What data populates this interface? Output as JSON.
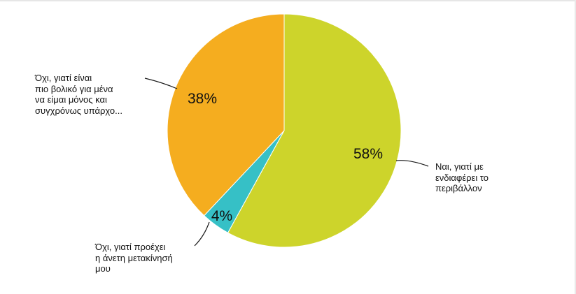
{
  "chart_data": {
    "type": "pie",
    "categories": [
      "Ναι, γιατί με ενδιαφέρει το περιβάλλον",
      "Όχι, γιατί προέχει η άνετη μετακίνησή μου",
      "Όχι, γιατί είναι πιο βολικό για μένα να είμαι μόνος και συγχρόνως υπάρχο..."
    ],
    "values": [
      58,
      4,
      38
    ],
    "value_labels": [
      "58%",
      "4%",
      "38%"
    ],
    "colors": [
      "#cdd42b",
      "#36c0c6",
      "#f5ad1f"
    ],
    "start_angle_deg": 0,
    "direction": "clockwise",
    "legend": "none"
  },
  "callouts": {
    "yes_env": "Ναι, γιατί με\nενδιαφέρει το\nπεριβάλλον",
    "no_comfort": "Όχι, γιατί προέχει\nη άνετη μετακίνησή\nμου",
    "no_alone": "Όχι, γιατί είναι\nπιο βολικό για μένα\nνα είμαι μόνος και\nσυγχρόνως υπάρχο..."
  }
}
